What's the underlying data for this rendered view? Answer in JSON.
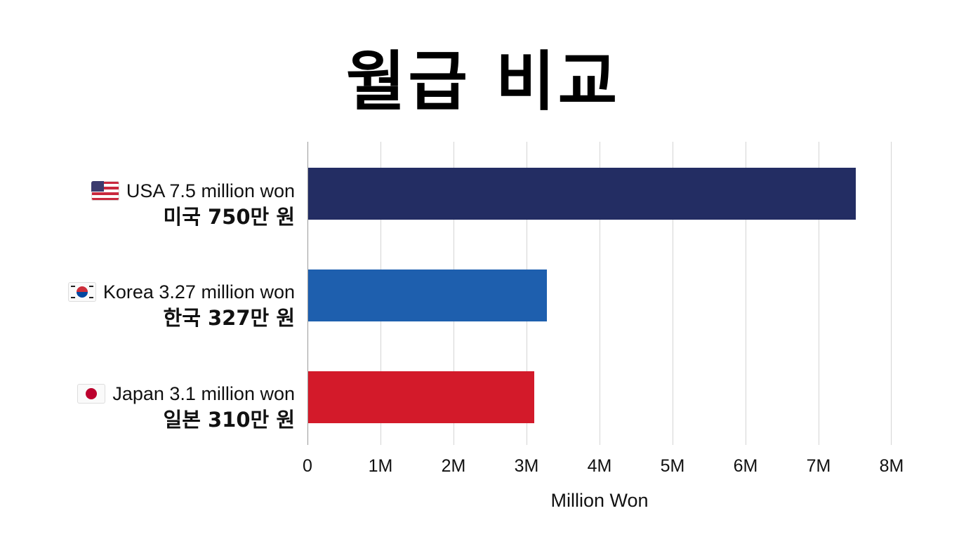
{
  "title": "월급 비교",
  "chart_data": {
    "type": "bar",
    "orientation": "horizontal",
    "title": "월급 비교",
    "xlabel": "Million Won",
    "ylabel": "",
    "xlim": [
      0,
      8000000
    ],
    "grid": true,
    "categories": [
      "USA",
      "Korea",
      "Japan"
    ],
    "values": [
      7500000,
      3270000,
      3100000
    ],
    "colors": [
      "#232d63",
      "#1e5fae",
      "#d31a2a"
    ],
    "x_ticks": [
      "0",
      "1M",
      "2M",
      "3M",
      "4M",
      "5M",
      "6M",
      "7M",
      "8M"
    ],
    "labels": [
      {
        "flag": "us-flag-icon",
        "en": "USA 7.5 million won",
        "ko": "미국 750만 원"
      },
      {
        "flag": "kr-flag-icon",
        "en": "Korea 3.27 million won",
        "ko": "한국 327만 원"
      },
      {
        "flag": "jp-flag-icon",
        "en": "Japan 3.1 million won",
        "ko": "일본 310만 원"
      }
    ]
  }
}
